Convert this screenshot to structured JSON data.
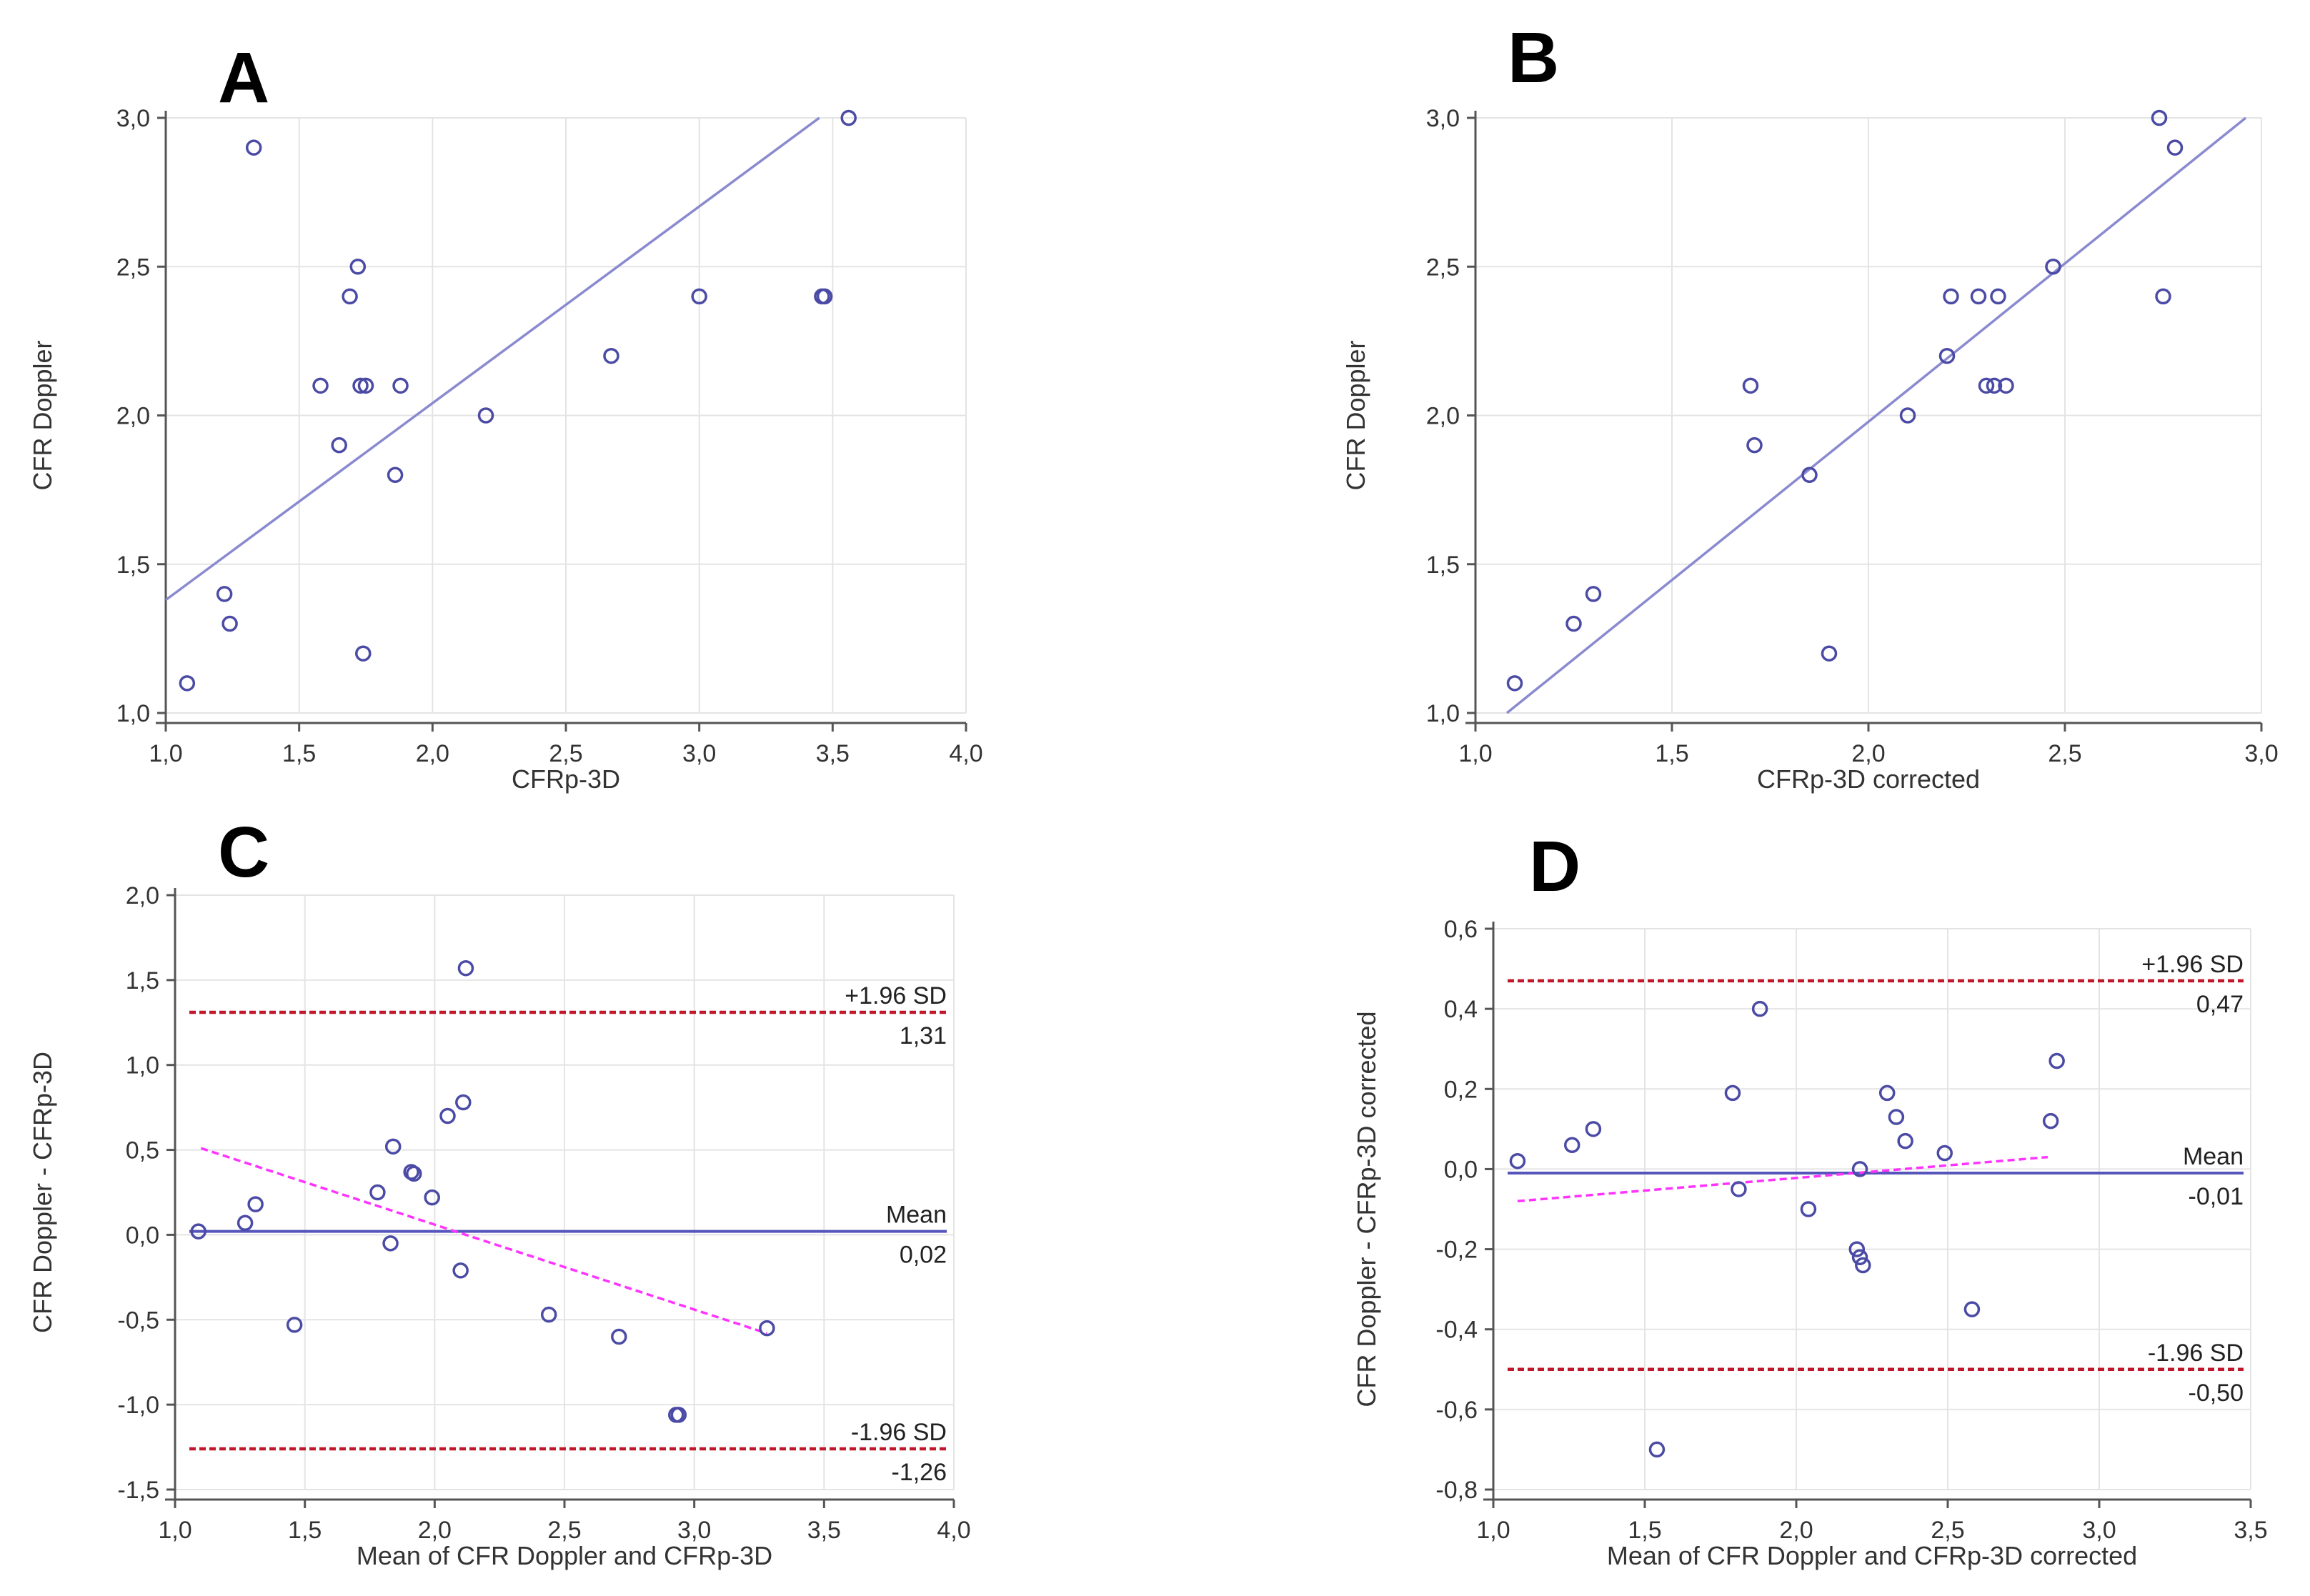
{
  "colors": {
    "points": "#4b4ba5",
    "regression": "#8a8ad0",
    "mean_line": "#5555bb",
    "limit_line": "#c0182a",
    "trend_line": "#ff33ff"
  },
  "chart_data": [
    {
      "panel": "A",
      "type": "scatter",
      "xlabel": "CFRp-3D",
      "ylabel": "CFR Doppler",
      "xlim": [
        1.0,
        4.0
      ],
      "ylim": [
        1.0,
        3.0
      ],
      "xticks": [
        1.0,
        1.5,
        2.0,
        2.5,
        3.0,
        3.5,
        4.0
      ],
      "yticks": [
        1.0,
        1.5,
        2.0,
        2.5,
        3.0
      ],
      "xtick_labels": [
        "1,0",
        "1,5",
        "2,0",
        "2,5",
        "3,0",
        "3,5",
        "4,0"
      ],
      "ytick_labels": [
        "1,0",
        "1,5",
        "2,0",
        "2,5",
        "3,0"
      ],
      "points": [
        [
          1.08,
          1.1
        ],
        [
          1.22,
          1.4
        ],
        [
          1.24,
          1.3
        ],
        [
          1.33,
          2.9
        ],
        [
          1.58,
          2.1
        ],
        [
          1.65,
          1.9
        ],
        [
          1.69,
          2.4
        ],
        [
          1.72,
          2.5
        ],
        [
          1.73,
          2.1
        ],
        [
          1.75,
          2.1
        ],
        [
          1.74,
          1.2
        ],
        [
          1.86,
          1.8
        ],
        [
          1.88,
          2.1
        ],
        [
          2.2,
          2.0
        ],
        [
          2.67,
          2.2
        ],
        [
          3.0,
          2.4
        ],
        [
          3.46,
          2.4
        ],
        [
          3.47,
          2.4
        ],
        [
          3.56,
          3.0
        ]
      ],
      "regression_line": {
        "x": [
          1.0,
          3.45
        ],
        "y": [
          1.38,
          3.0
        ]
      }
    },
    {
      "panel": "B",
      "type": "scatter",
      "xlabel": "CFRp-3D corrected",
      "ylabel": "CFR Doppler",
      "xlim": [
        1.0,
        3.0
      ],
      "ylim": [
        1.0,
        3.0
      ],
      "xticks": [
        1.0,
        1.5,
        2.0,
        2.5,
        3.0
      ],
      "yticks": [
        1.0,
        1.5,
        2.0,
        2.5,
        3.0
      ],
      "xtick_labels": [
        "1,0",
        "1,5",
        "2,0",
        "2,5",
        "3,0"
      ],
      "ytick_labels": [
        "1,0",
        "1,5",
        "2,0",
        "2,5",
        "3,0"
      ],
      "points": [
        [
          1.1,
          1.1
        ],
        [
          1.25,
          1.3
        ],
        [
          1.3,
          1.4
        ],
        [
          1.7,
          2.1
        ],
        [
          1.71,
          1.9
        ],
        [
          1.85,
          1.8
        ],
        [
          1.9,
          1.2
        ],
        [
          2.1,
          2.0
        ],
        [
          2.2,
          2.2
        ],
        [
          2.21,
          2.4
        ],
        [
          2.28,
          2.4
        ],
        [
          2.3,
          2.1
        ],
        [
          2.32,
          2.1
        ],
        [
          2.33,
          2.4
        ],
        [
          2.35,
          2.1
        ],
        [
          2.47,
          2.5
        ],
        [
          2.74,
          3.0
        ],
        [
          2.75,
          2.4
        ],
        [
          2.78,
          2.9
        ]
      ],
      "regression_line": {
        "x": [
          1.08,
          2.96
        ],
        "y": [
          1.0,
          3.0
        ]
      }
    },
    {
      "panel": "C",
      "type": "scatter",
      "subtype": "bland-altman",
      "xlabel": "Mean of CFR Doppler and CFRp-3D",
      "ylabel": "CFR Doppler - CFRp-3D",
      "xlim": [
        1.0,
        4.0
      ],
      "ylim": [
        -1.5,
        2.0
      ],
      "xticks": [
        1.0,
        1.5,
        2.0,
        2.5,
        3.0,
        3.5,
        4.0
      ],
      "yticks": [
        -1.5,
        -1.0,
        -0.5,
        0.0,
        0.5,
        1.0,
        1.5,
        2.0
      ],
      "xtick_labels": [
        "1,0",
        "1,5",
        "2,0",
        "2,5",
        "3,0",
        "3,5",
        "4,0"
      ],
      "ytick_labels": [
        "-1,5",
        "-1,0",
        "-0,5",
        "0,0",
        "0,5",
        "1,0",
        "1,5",
        "2,0"
      ],
      "points": [
        [
          1.09,
          0.02
        ],
        [
          1.27,
          0.07
        ],
        [
          1.31,
          0.18
        ],
        [
          1.46,
          -0.53
        ],
        [
          1.78,
          0.25
        ],
        [
          1.83,
          -0.05
        ],
        [
          1.84,
          0.52
        ],
        [
          1.91,
          0.37
        ],
        [
          1.92,
          0.36
        ],
        [
          1.99,
          0.22
        ],
        [
          2.05,
          0.7
        ],
        [
          2.1,
          -0.21
        ],
        [
          2.11,
          0.78
        ],
        [
          2.12,
          1.57
        ],
        [
          2.44,
          -0.47
        ],
        [
          2.71,
          -0.6
        ],
        [
          2.93,
          -1.06
        ],
        [
          2.94,
          -1.06
        ],
        [
          3.28,
          -0.55
        ]
      ],
      "mean": 0.02,
      "upper_limit": 1.31,
      "lower_limit": -1.26,
      "trend_line": {
        "x": [
          1.1,
          3.28
        ],
        "y": [
          0.51,
          -0.58
        ]
      },
      "labels": {
        "upper": "+1.96 SD",
        "upper_value": "1,31",
        "mean": "Mean",
        "mean_value": "0,02",
        "lower": "-1.96 SD",
        "lower_value": "-1,26"
      }
    },
    {
      "panel": "D",
      "type": "scatter",
      "subtype": "bland-altman",
      "xlabel": "Mean of CFR Doppler and CFRp-3D corrected",
      "ylabel": "CFR Doppler - CFRp-3D corrected",
      "xlim": [
        1.0,
        3.5
      ],
      "ylim": [
        -0.8,
        0.6
      ],
      "xticks": [
        1.0,
        1.5,
        2.0,
        2.5,
        3.0,
        3.5
      ],
      "yticks": [
        -0.8,
        -0.6,
        -0.4,
        -0.2,
        0.0,
        0.2,
        0.4,
        0.6
      ],
      "xtick_labels": [
        "1,0",
        "1,5",
        "2,0",
        "2,5",
        "3,0",
        "3,5"
      ],
      "ytick_labels": [
        "-0,8",
        "-0,6",
        "-0,4",
        "-0,2",
        "0,0",
        "0,2",
        "0,4",
        "0,6"
      ],
      "points": [
        [
          1.08,
          0.02
        ],
        [
          1.26,
          0.06
        ],
        [
          1.33,
          0.1
        ],
        [
          1.54,
          -0.7
        ],
        [
          1.79,
          0.19
        ],
        [
          1.81,
          -0.05
        ],
        [
          1.88,
          0.4
        ],
        [
          2.04,
          -0.1
        ],
        [
          2.2,
          -0.2
        ],
        [
          2.21,
          -0.22
        ],
        [
          2.21,
          0.0
        ],
        [
          2.22,
          -0.24
        ],
        [
          2.3,
          0.19
        ],
        [
          2.33,
          0.13
        ],
        [
          2.36,
          0.07
        ],
        [
          2.49,
          0.04
        ],
        [
          2.58,
          -0.35
        ],
        [
          2.84,
          0.12
        ],
        [
          2.86,
          0.27
        ]
      ],
      "mean": -0.01,
      "upper_limit": 0.47,
      "lower_limit": -0.5,
      "trend_line": {
        "x": [
          1.08,
          2.83
        ],
        "y": [
          -0.08,
          0.03
        ]
      },
      "labels": {
        "upper": "+1.96 SD",
        "upper_value": "0,47",
        "mean": "Mean",
        "mean_value": "-0,01",
        "lower": "-1.96 SD",
        "lower_value": "-0,50"
      }
    }
  ]
}
